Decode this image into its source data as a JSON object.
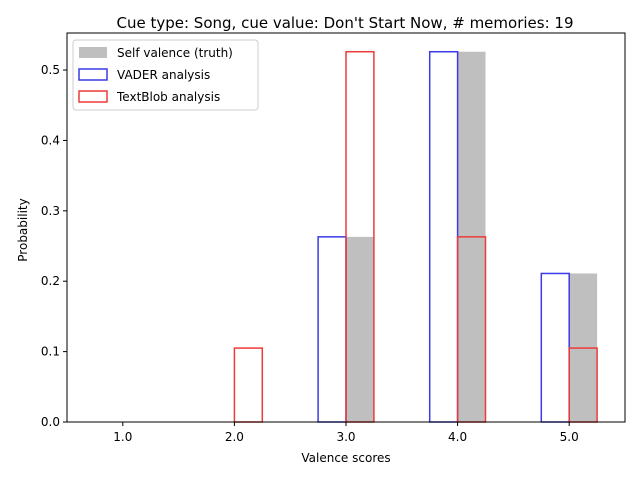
{
  "chart_data": {
    "type": "bar",
    "title": "Cue type: Song, cue value: Don't Start Now, # memories: 19",
    "xlabel": "Valence scores",
    "ylabel": "Probability",
    "categories": [
      "1.0",
      "2.0",
      "3.0",
      "4.0",
      "5.0"
    ],
    "x": [
      1,
      2,
      3,
      4,
      5
    ],
    "xlim": [
      0.5,
      5.5
    ],
    "ylim": [
      0,
      0.5526
    ],
    "yticks": [
      0.0,
      0.1,
      0.2,
      0.3,
      0.4,
      0.5
    ],
    "ytick_labels": [
      "0.0",
      "0.1",
      "0.2",
      "0.3",
      "0.4",
      "0.5"
    ],
    "grid": false,
    "legend_position": "upper left",
    "series": [
      {
        "name": "Self valence (truth)",
        "style": "filled",
        "color": "#bfbfbf",
        "values": [
          0,
          0,
          0.263,
          0.526,
          0.211
        ]
      },
      {
        "name": "VADER analysis",
        "style": "outline",
        "color": "#3a3ae6",
        "values": [
          0,
          0,
          0.263,
          0.526,
          0.211
        ]
      },
      {
        "name": "TextBlob analysis",
        "style": "outline",
        "color": "#ee3a3a",
        "values": [
          0,
          0.105,
          0.526,
          0.263,
          0.105
        ]
      }
    ]
  }
}
